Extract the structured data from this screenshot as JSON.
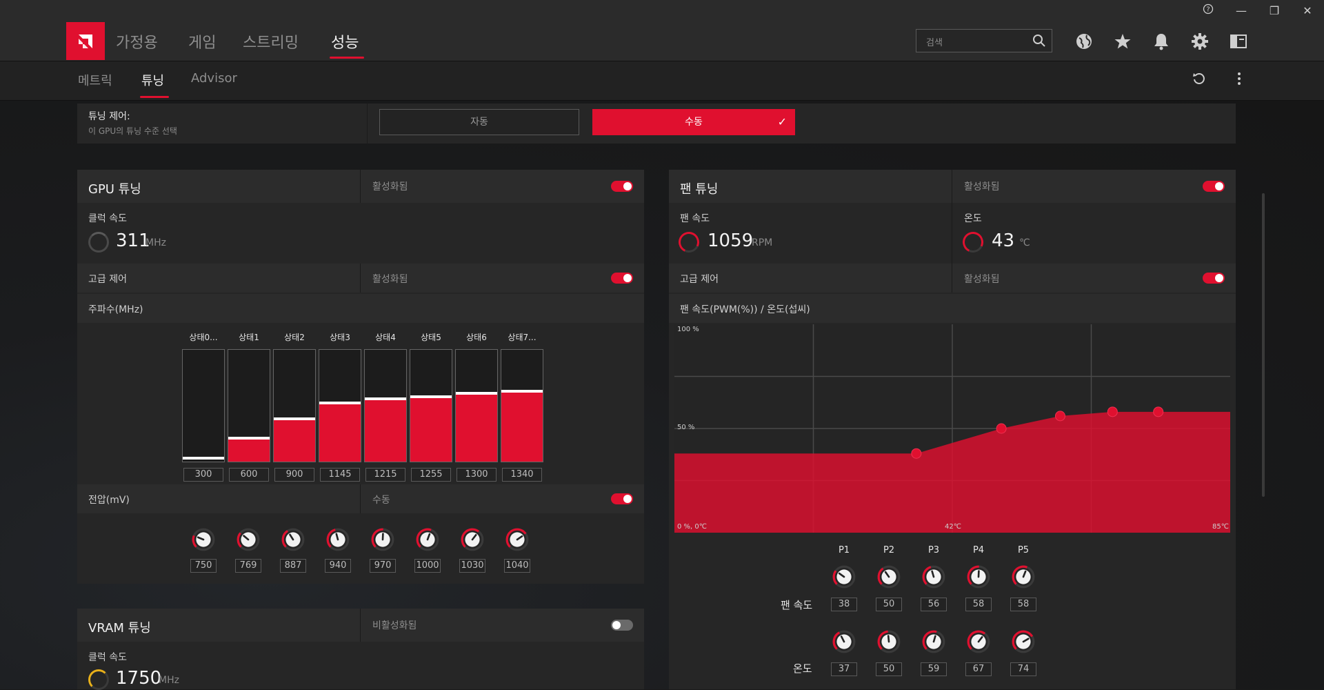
{
  "window": {
    "help": "?",
    "minimize": "—",
    "restore": "❐",
    "close": "✕"
  },
  "nav": {
    "tabs": [
      "가정용",
      "게임",
      "스트리밍",
      "성능"
    ],
    "active_tab": "성능",
    "search_placeholder": "검색"
  },
  "subnav": {
    "tabs": [
      "메트릭",
      "튜닝",
      "Advisor"
    ],
    "active_tab": "튜닝"
  },
  "tuning_control": {
    "title": "튜닝 제어:",
    "subtitle": "이 GPU의 튜닝 수준 선택",
    "auto_label": "자동",
    "manual_label": "수동",
    "check": "✓"
  },
  "gpu": {
    "title": "GPU 튜닝",
    "state": "활성화됨",
    "clock_label": "클럭 속도",
    "clock_value": "311",
    "clock_unit": "MHz",
    "advanced_label": "고급 제어",
    "advanced_state": "활성화됨",
    "freq_label": "주파수(MHz)",
    "freq_states": [
      "상태0...",
      "상태1",
      "상태2",
      "상태3",
      "상태4",
      "상태5",
      "상태6",
      "상태7..."
    ],
    "freq_values": [
      "300",
      "600",
      "900",
      "1145",
      "1215",
      "1255",
      "1300",
      "1340"
    ],
    "freq_fill_fraction": [
      0.02,
      0.2,
      0.37,
      0.51,
      0.55,
      0.57,
      0.6,
      0.62
    ],
    "voltage_label": "전압(mV)",
    "voltage_state": "수동",
    "voltage_values": [
      "750",
      "769",
      "887",
      "940",
      "970",
      "1000",
      "1030",
      "1040"
    ]
  },
  "vram": {
    "title": "VRAM 튜닝",
    "state": "비활성화됨",
    "clock_label": "클럭 속도",
    "clock_value": "1750",
    "clock_unit": "MHz"
  },
  "fan": {
    "title": "팬 튜닝",
    "state": "활성화됨",
    "speed_label": "팬 속도",
    "speed_value": "1059",
    "speed_unit": "RPM",
    "temp_label": "온도",
    "temp_value": "43",
    "temp_unit": "℃",
    "advanced_label": "고급 제어",
    "advanced_state": "활성화됨",
    "curve_label": "팬 속도(PWM(%)) / 온도(섭씨)",
    "points": [
      "P1",
      "P2",
      "P3",
      "P4",
      "P5"
    ],
    "fan_speed_row_label": "팬 속도",
    "temp_row_label": "온도",
    "fan_speeds": [
      "38",
      "50",
      "56",
      "58",
      "58"
    ],
    "temps": [
      "37",
      "50",
      "59",
      "67",
      "74"
    ]
  },
  "chart_data": {
    "type": "area",
    "y_top_label": "100 %",
    "y_mid_label": "50 %",
    "origin_label": "0 %, 0℃",
    "x_mid_label": "42℃",
    "x_max_label": "85℃",
    "xlim": [
      0,
      85
    ],
    "ylim": [
      0,
      100
    ],
    "series": [
      {
        "x": [
          37,
          50,
          59,
          67,
          74
        ],
        "y": [
          38,
          50,
          56,
          58,
          58
        ]
      }
    ]
  },
  "colors": {
    "accent": "#e0102f",
    "vram_accent": "#e8b01a"
  }
}
